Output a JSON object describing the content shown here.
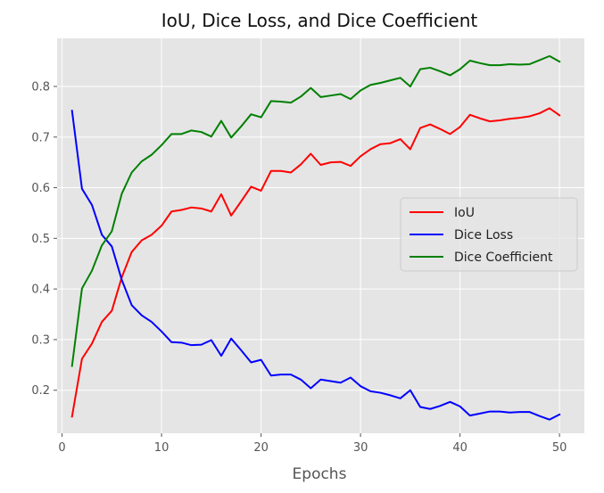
{
  "chart_data": {
    "type": "line",
    "title": "IoU, Dice Loss, and Dice Coefficient",
    "xlabel": "Epochs",
    "ylabel": "",
    "xlim": [
      -0.5,
      52.5
    ],
    "ylim": [
      0.115,
      0.895
    ],
    "x_ticks": [
      0,
      10,
      20,
      30,
      40,
      50
    ],
    "y_ticks": [
      0.2,
      0.3,
      0.4,
      0.5,
      0.6,
      0.7,
      0.8
    ],
    "grid": true,
    "legend_position": "center-right",
    "style": {
      "plot_background": "#e5e5e5",
      "grid_color": "#ffffff"
    },
    "x": [
      1,
      2,
      3,
      4,
      5,
      6,
      7,
      8,
      9,
      10,
      11,
      12,
      13,
      14,
      15,
      16,
      17,
      18,
      19,
      20,
      21,
      22,
      23,
      24,
      25,
      26,
      27,
      28,
      29,
      30,
      31,
      32,
      33,
      34,
      35,
      36,
      37,
      38,
      39,
      40,
      41,
      42,
      43,
      44,
      45,
      46,
      47,
      48,
      49,
      50
    ],
    "series": [
      {
        "name": "IoU",
        "color": "#ff0000",
        "values": [
          0.148,
          0.262,
          0.292,
          0.335,
          0.357,
          0.423,
          0.473,
          0.496,
          0.507,
          0.525,
          0.553,
          0.556,
          0.561,
          0.559,
          0.553,
          0.587,
          0.545,
          0.573,
          0.602,
          0.594,
          0.633,
          0.633,
          0.63,
          0.646,
          0.667,
          0.645,
          0.65,
          0.651,
          0.643,
          0.662,
          0.676,
          0.686,
          0.688,
          0.696,
          0.676,
          0.718,
          0.725,
          0.716,
          0.706,
          0.72,
          0.744,
          0.737,
          0.731,
          0.733,
          0.736,
          0.738,
          0.741,
          0.747,
          0.757,
          0.743
        ]
      },
      {
        "name": "Dice Loss",
        "color": "#0000ff",
        "values": [
          0.752,
          0.598,
          0.566,
          0.507,
          0.484,
          0.418,
          0.368,
          0.348,
          0.335,
          0.316,
          0.295,
          0.294,
          0.289,
          0.29,
          0.299,
          0.268,
          0.302,
          0.279,
          0.255,
          0.26,
          0.229,
          0.231,
          0.231,
          0.221,
          0.204,
          0.221,
          0.218,
          0.215,
          0.225,
          0.208,
          0.198,
          0.195,
          0.19,
          0.184,
          0.2,
          0.167,
          0.163,
          0.169,
          0.177,
          0.168,
          0.15,
          0.154,
          0.158,
          0.158,
          0.156,
          0.157,
          0.157,
          0.149,
          0.142,
          0.152
        ]
      },
      {
        "name": "Dice Coefficient",
        "color": "#008000",
        "values": [
          0.248,
          0.401,
          0.436,
          0.486,
          0.514,
          0.588,
          0.63,
          0.652,
          0.665,
          0.684,
          0.706,
          0.706,
          0.713,
          0.71,
          0.701,
          0.732,
          0.699,
          0.721,
          0.745,
          0.739,
          0.771,
          0.77,
          0.768,
          0.78,
          0.797,
          0.779,
          0.782,
          0.785,
          0.775,
          0.792,
          0.803,
          0.807,
          0.812,
          0.817,
          0.8,
          0.834,
          0.837,
          0.83,
          0.822,
          0.834,
          0.851,
          0.846,
          0.842,
          0.842,
          0.844,
          0.843,
          0.844,
          0.852,
          0.86,
          0.849
        ]
      }
    ]
  }
}
